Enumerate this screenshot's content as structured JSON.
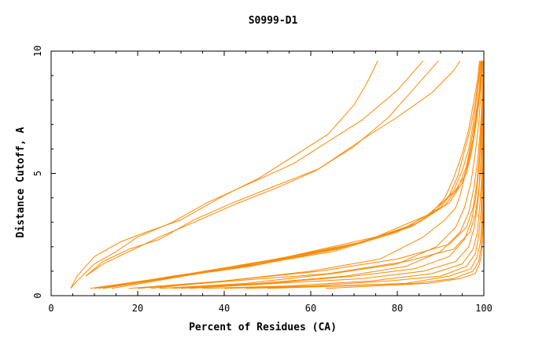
{
  "chart_data": {
    "type": "line",
    "title": "S0999-D1",
    "xlabel": "Percent of Residues (CA)",
    "ylabel": "Distance Cutoff, A",
    "xlim": [
      0,
      100
    ],
    "ylim": [
      0,
      10
    ],
    "x_ticks": [
      0,
      20,
      40,
      60,
      80,
      100
    ],
    "y_ticks": [
      0,
      5,
      10
    ],
    "grid": false,
    "line_color": "#ff8800",
    "series": [
      {
        "x": [
          4.5,
          6,
          10,
          16,
          22,
          30,
          40,
          48,
          56,
          64,
          70,
          73,
          75.5
        ],
        "y": [
          0.3,
          0.8,
          1.6,
          2.2,
          2.6,
          3.1,
          4.1,
          4.8,
          5.7,
          6.6,
          7.8,
          8.7,
          9.6
        ]
      },
      {
        "x": [
          4.5,
          6,
          10,
          15,
          20,
          28,
          36,
          46,
          56,
          64,
          72,
          80,
          86
        ],
        "y": [
          0.3,
          0.6,
          1.3,
          1.8,
          2.4,
          3.0,
          3.8,
          4.6,
          5.4,
          6.3,
          7.2,
          8.4,
          9.6
        ]
      },
      {
        "x": [
          8,
          12,
          18,
          25,
          33,
          42,
          52,
          61,
          70,
          78,
          84,
          89.5
        ],
        "y": [
          0.8,
          1.3,
          1.8,
          2.4,
          3.0,
          3.7,
          4.4,
          5.1,
          6.1,
          7.3,
          8.5,
          9.6
        ]
      },
      {
        "x": [
          8,
          12,
          18,
          25,
          33,
          42,
          52,
          62,
          72,
          80,
          88,
          93,
          94.5
        ],
        "y": [
          0.8,
          1.4,
          1.9,
          2.3,
          3.1,
          3.8,
          4.5,
          5.2,
          6.4,
          7.3,
          8.3,
          9.2,
          9.6
        ]
      },
      {
        "x": [
          9,
          25,
          45,
          65,
          80,
          88,
          91,
          93,
          95,
          96.5,
          97.5,
          98.5,
          99
        ],
        "y": [
          0.3,
          0.7,
          1.2,
          1.8,
          2.6,
          3.4,
          4.0,
          4.8,
          5.8,
          6.8,
          7.8,
          8.8,
          9.6
        ]
      },
      {
        "x": [
          10,
          26,
          46,
          66,
          81,
          89,
          92,
          94,
          95.5,
          97,
          98,
          98.8,
          99.2
        ],
        "y": [
          0.3,
          0.7,
          1.2,
          1.9,
          2.7,
          3.5,
          4.1,
          4.9,
          5.9,
          6.9,
          7.9,
          8.9,
          9.6
        ]
      },
      {
        "x": [
          11,
          28,
          48,
          68,
          83,
          90,
          93,
          95,
          96.5,
          97.5,
          98.3,
          99,
          99.4
        ],
        "y": [
          0.3,
          0.8,
          1.3,
          2.0,
          2.8,
          3.6,
          4.3,
          5.1,
          6.0,
          7.0,
          8.0,
          9.0,
          9.6
        ]
      },
      {
        "x": [
          12,
          30,
          50,
          70,
          84,
          91,
          94,
          96,
          97,
          98,
          98.8,
          99.3,
          99.6
        ],
        "y": [
          0.3,
          0.8,
          1.4,
          2.1,
          2.9,
          3.7,
          4.4,
          5.3,
          6.2,
          7.2,
          8.2,
          9.1,
          9.6
        ]
      },
      {
        "x": [
          12,
          32,
          52,
          72,
          85,
          92,
          95,
          96.5,
          97.5,
          98.3,
          99,
          99.5,
          99.8
        ],
        "y": [
          0.3,
          0.9,
          1.5,
          2.2,
          3.0,
          3.8,
          4.6,
          5.5,
          6.4,
          7.4,
          8.3,
          9.2,
          9.6
        ]
      },
      {
        "x": [
          14,
          34,
          55,
          75,
          87,
          93,
          96,
          97.2,
          98,
          98.7,
          99.2,
          99.6,
          99.9
        ],
        "y": [
          0.3,
          0.9,
          1.6,
          2.4,
          3.3,
          4.2,
          5.0,
          5.9,
          6.8,
          7.7,
          8.5,
          9.3,
          9.6
        ]
      },
      {
        "x": [
          23,
          40,
          60,
          76,
          86,
          91,
          93.5,
          94.5,
          96,
          97.5,
          98.5,
          99.2,
          99.5
        ],
        "y": [
          0.3,
          0.6,
          1.0,
          1.5,
          2.4,
          3.1,
          3.6,
          4.1,
          5.2,
          6.4,
          7.6,
          8.8,
          9.6
        ]
      },
      {
        "x": [
          25,
          45,
          65,
          80,
          89,
          93.5,
          95.5,
          97,
          98,
          98.8,
          99.3,
          99.7
        ],
        "y": [
          0.3,
          0.5,
          0.9,
          1.3,
          2.0,
          2.8,
          3.6,
          4.6,
          5.8,
          7.0,
          8.2,
          9.6
        ]
      },
      {
        "x": [
          28,
          48,
          68,
          82,
          90,
          94.5,
          96.5,
          97.7,
          98.6,
          99.2,
          99.6,
          99.9
        ],
        "y": [
          0.3,
          0.5,
          0.8,
          1.2,
          1.8,
          2.6,
          3.4,
          4.4,
          5.6,
          6.8,
          8.0,
          9.6
        ]
      },
      {
        "x": [
          30,
          50,
          70,
          84,
          92,
          95.5,
          97.2,
          98.2,
          98.9,
          99.4,
          99.7,
          100
        ],
        "y": [
          0.3,
          0.5,
          0.8,
          1.1,
          1.6,
          2.3,
          3.1,
          4.1,
          5.3,
          6.6,
          7.9,
          9.6
        ]
      },
      {
        "x": [
          32,
          52,
          72,
          86,
          93.5,
          96.5,
          97.8,
          98.6,
          99.2,
          99.6,
          99.8,
          100
        ],
        "y": [
          0.3,
          0.5,
          0.7,
          1.0,
          1.4,
          2.0,
          2.8,
          3.8,
          5.0,
          6.4,
          7.8,
          9.6
        ]
      },
      {
        "x": [
          35,
          55,
          74,
          88,
          95,
          97.5,
          98.5,
          99,
          99.5,
          99.7,
          99.9,
          100
        ],
        "y": [
          0.3,
          0.4,
          0.6,
          0.9,
          1.3,
          1.9,
          2.6,
          3.6,
          4.8,
          6.2,
          7.6,
          9.6
        ]
      },
      {
        "x": [
          40,
          60,
          78,
          90,
          96,
          98,
          98.8,
          99.3,
          99.6,
          99.8,
          100,
          100
        ],
        "y": [
          0.3,
          0.4,
          0.6,
          0.8,
          1.2,
          1.7,
          2.4,
          3.4,
          4.6,
          6.0,
          7.6,
          9.6
        ]
      },
      {
        "x": [
          45,
          65,
          82,
          92,
          97,
          98.5,
          99.2,
          99.5,
          99.7,
          99.9,
          100,
          100
        ],
        "y": [
          0.3,
          0.4,
          0.5,
          0.8,
          1.1,
          1.6,
          2.2,
          3.2,
          4.4,
          5.8,
          7.4,
          9.6
        ]
      },
      {
        "x": [
          50,
          68,
          84,
          93,
          97.5,
          98.8,
          99.4,
          99.7,
          99.9,
          100,
          100,
          100
        ],
        "y": [
          0.3,
          0.4,
          0.5,
          0.7,
          1.0,
          1.4,
          2.0,
          3.0,
          4.2,
          5.6,
          7.2,
          9.6
        ]
      },
      {
        "x": [
          63.5,
          75,
          87,
          94.5,
          98,
          99,
          99.5,
          99.8,
          100,
          100,
          100,
          100
        ],
        "y": [
          0.3,
          0.4,
          0.5,
          0.7,
          0.9,
          1.3,
          1.8,
          2.8,
          4.0,
          5.4,
          7.0,
          9.6
        ]
      },
      {
        "x": [
          18,
          40,
          62,
          80,
          92,
          96,
          97.5,
          98.4,
          99,
          99.4,
          99.7,
          99.9
        ],
        "y": [
          0.3,
          0.6,
          1.0,
          1.5,
          2.1,
          2.8,
          3.6,
          4.6,
          5.8,
          7.0,
          8.3,
          9.6
        ]
      },
      {
        "x": [
          20,
          42,
          64,
          82,
          93,
          96.8,
          98,
          98.8,
          99.3,
          99.6,
          99.8,
          100
        ],
        "y": [
          0.3,
          0.6,
          0.9,
          1.4,
          1.9,
          2.6,
          3.3,
          4.3,
          5.5,
          6.8,
          8.1,
          9.6
        ]
      }
    ]
  }
}
